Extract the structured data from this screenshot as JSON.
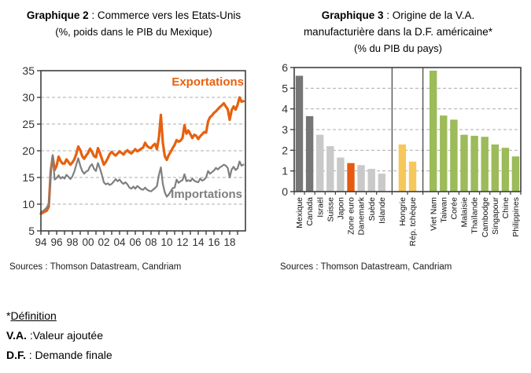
{
  "chart2": {
    "title_bold": "Graphique 2",
    "title_rest": " : Commerce vers les Etats-Unis",
    "subtitle": "(%, poids dans le PIB du Mexique)",
    "source": "Sources : Thomson Datastream, Candriam"
  },
  "chart3": {
    "title_bold": "Graphique 3",
    "title_rest": " : Origine de la V.A.",
    "title_line2": "manufacturière dans la D.F. américaine*",
    "subtitle": "(% du PIB du pays)",
    "source": "Sources : Thomson Datastream, Candriam"
  },
  "footnote": {
    "star": "*",
    "definition_word": "Définition",
    "va_term": "V.A.",
    "va_rest": " :Valeur ajoutée",
    "df_term": "D.F.",
    "df_rest": " : Demande finale"
  },
  "chart_data": [
    {
      "type": "line",
      "title": "Graphique 2 : Commerce vers les Etats-Unis",
      "subtitle": "(%, poids dans le PIB du Mexique)",
      "xlabel": "",
      "ylabel": "",
      "xlim": [
        1994,
        2020
      ],
      "ylim": [
        5,
        35
      ],
      "y_ticks": [
        5,
        10,
        15,
        20,
        25,
        30,
        35
      ],
      "y_gridlines": [
        10,
        15,
        20,
        25,
        30
      ],
      "x_tick_labels": [
        "94",
        "96",
        "98",
        "00",
        "02",
        "04",
        "06",
        "08",
        "10",
        "12",
        "14",
        "16",
        "18"
      ],
      "grid": "horizontal dashed",
      "legend_position": "labels inside plot, right side",
      "x_start": 1994,
      "x_step": 0.25,
      "style": {
        "axis": "#3f3f3f",
        "grid": "#adadad",
        "text": "#303030"
      },
      "series": [
        {
          "name": "Exportations",
          "color": "#E7600E",
          "width": 3.2,
          "values": [
            8.2,
            8.4,
            8.6,
            8.8,
            9.5,
            16.2,
            18.9,
            16.4,
            17.2,
            18.9,
            18.1,
            17.6,
            17.6,
            18.4,
            17.9,
            17.4,
            17.8,
            18.4,
            19.4,
            20.8,
            20.1,
            19.0,
            18.5,
            19.1,
            19.6,
            20.4,
            19.8,
            19.0,
            18.8,
            20.5,
            19.6,
            18.5,
            17.4,
            17.9,
            18.6,
            19.4,
            19.8,
            19.4,
            19.1,
            19.5,
            19.9,
            19.6,
            19.3,
            19.8,
            20.1,
            19.7,
            19.5,
            19.9,
            20.3,
            19.9,
            20.1,
            20.4,
            20.6,
            21.5,
            20.9,
            20.6,
            20.5,
            21.0,
            21.3,
            20.3,
            22.5,
            26.7,
            21.5,
            19.0,
            18.3,
            19.2,
            19.8,
            20.5,
            21.1,
            22.0,
            21.7,
            21.9,
            22.4,
            24.8,
            23.2,
            23.8,
            23.1,
            22.4,
            23.0,
            22.8,
            22.2,
            22.7,
            23.1,
            23.5,
            23.4,
            25.5,
            26.3,
            26.6,
            27.1,
            27.4,
            27.8,
            28.2,
            28.5,
            28.9,
            28.3,
            27.8,
            25.8,
            27.6,
            28.3,
            27.7,
            28.6,
            30.0,
            29.2,
            29.3
          ]
        },
        {
          "name": "Importations",
          "color": "#7F7F7F",
          "width": 2.2,
          "values": [
            8.5,
            8.7,
            9.0,
            9.4,
            10.0,
            15.8,
            19.2,
            14.6,
            14.9,
            15.4,
            14.8,
            15.1,
            14.8,
            15.5,
            15.1,
            14.7,
            15.2,
            16.1,
            17.4,
            18.6,
            17.2,
            16.2,
            15.7,
            16.1,
            16.3,
            17.1,
            17.5,
            16.6,
            16.2,
            17.7,
            16.7,
            15.5,
            14.1,
            13.7,
            13.9,
            13.6,
            13.8,
            14.2,
            14.7,
            14.3,
            14.6,
            14.1,
            13.8,
            14.1,
            13.7,
            13.1,
            12.9,
            13.3,
            12.9,
            13.4,
            13.1,
            12.8,
            12.7,
            13.1,
            12.7,
            12.5,
            12.4,
            12.7,
            13.0,
            13.4,
            15.5,
            16.9,
            13.8,
            12.2,
            11.4,
            11.8,
            12.4,
            13.0,
            13.1,
            14.6,
            14.0,
            14.3,
            14.5,
            15.6,
            14.3,
            14.5,
            14.3,
            14.8,
            14.4,
            14.2,
            14.1,
            14.8,
            14.4,
            14.6,
            15.0,
            16.2,
            15.7,
            16.0,
            16.3,
            16.8,
            16.5,
            16.9,
            17.1,
            17.4,
            17.2,
            16.8,
            15.0,
            16.5,
            17.0,
            16.4,
            16.7,
            18.0,
            17.2,
            17.4
          ]
        }
      ]
    },
    {
      "type": "bar",
      "title": "Graphique 3 : Origine de la V.A. manufacturière dans la D.F. américaine",
      "subtitle": "(% du PIB du pays)",
      "xlabel": "",
      "ylabel": "",
      "ylim": [
        0,
        6
      ],
      "y_ticks": [
        0,
        1,
        2,
        3,
        4,
        5,
        6
      ],
      "y_gridlines": [
        1,
        2,
        3,
        4,
        5
      ],
      "grid": "horizontal dashed",
      "style": {
        "axis": "#3f3f3f",
        "grid": "#adadad",
        "text": "#303030",
        "label_text": "#111111"
      },
      "bar_colors": {
        "dark_gray": "#767676",
        "light_gray": "#C9C9C9",
        "orange": "#E55A10",
        "yellow": "#F6C75B",
        "green": "#9CBB59"
      },
      "bars": [
        {
          "label": "Mexique",
          "value": 5.6,
          "color": "dark_gray",
          "group": 0
        },
        {
          "label": "Canada",
          "value": 3.65,
          "color": "dark_gray",
          "group": 0
        },
        {
          "label": "Israël",
          "value": 2.75,
          "color": "light_gray",
          "group": 0
        },
        {
          "label": "Suisse",
          "value": 2.2,
          "color": "light_gray",
          "group": 0
        },
        {
          "label": "Japon",
          "value": 1.65,
          "color": "light_gray",
          "group": 0
        },
        {
          "label": "Zone euro",
          "value": 1.38,
          "color": "orange",
          "group": 0
        },
        {
          "label": "Danemark",
          "value": 1.28,
          "color": "light_gray",
          "group": 0
        },
        {
          "label": "Suède",
          "value": 1.1,
          "color": "light_gray",
          "group": 0
        },
        {
          "label": "Islande",
          "value": 0.87,
          "color": "light_gray",
          "group": 0
        },
        {
          "label": "Hongrie",
          "value": 2.28,
          "color": "yellow",
          "group": 1
        },
        {
          "label": "Rép. tchèque",
          "value": 1.45,
          "color": "yellow",
          "group": 1
        },
        {
          "label": "Viet Nam",
          "value": 5.85,
          "color": "green",
          "group": 2
        },
        {
          "label": "Taiwan",
          "value": 3.68,
          "color": "green",
          "group": 2
        },
        {
          "label": "Corée",
          "value": 3.48,
          "color": "green",
          "group": 2
        },
        {
          "label": "Malaisie",
          "value": 2.75,
          "color": "green",
          "group": 2
        },
        {
          "label": "Thaïlande",
          "value": 2.7,
          "color": "green",
          "group": 2
        },
        {
          "label": "Cambodge",
          "value": 2.65,
          "color": "green",
          "group": 2
        },
        {
          "label": "Singapour",
          "value": 2.28,
          "color": "green",
          "group": 2
        },
        {
          "label": "Chine",
          "value": 2.12,
          "color": "green",
          "group": 2
        },
        {
          "label": "Philippines",
          "value": 1.7,
          "color": "green",
          "group": 2
        }
      ]
    }
  ]
}
